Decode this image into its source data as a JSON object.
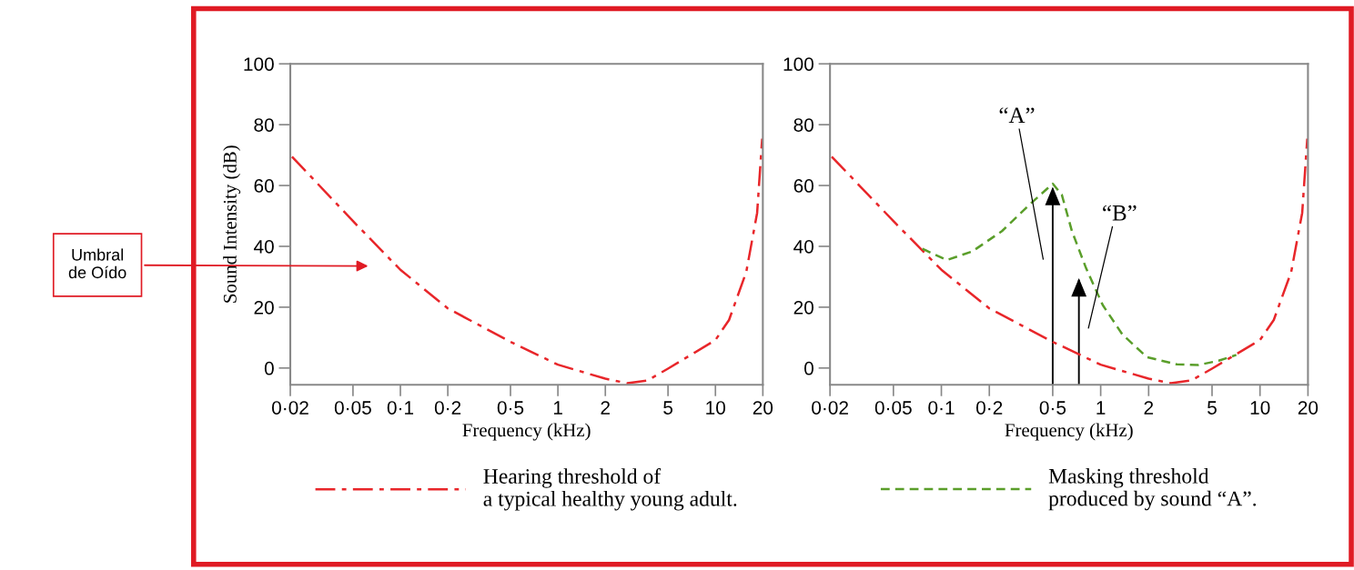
{
  "chart_data": [
    {
      "type": "line",
      "ylabel": "Sound Intensity (dB)",
      "xlabel": "Frequency (kHz)",
      "log": "x",
      "xlim": [
        0.02,
        20
      ],
      "xticks": [
        {
          "value": 0.02,
          "label": "0·02"
        },
        {
          "value": 0.05,
          "label": "0·05"
        },
        {
          "value": 0.1,
          "label": "0·1"
        },
        {
          "value": 0.2,
          "label": "0·2"
        },
        {
          "value": 0.5,
          "label": "0·5"
        },
        1,
        2,
        5,
        10,
        20
      ],
      "ylim": [
        -5.5,
        100
      ],
      "yticks": [
        0,
        20,
        40,
        60,
        80,
        100
      ],
      "legend": "bottom",
      "series": [
        {
          "name": "Hearing threshold of\na typical healthy young adult.",
          "color": "#e8262a",
          "line_style": "dashdot",
          "x": [
            0.0205,
            0.05,
            0.1,
            0.2,
            0.5,
            1,
            2,
            2.76,
            3.7,
            5,
            10,
            12.2,
            15.7,
            18.4,
            19.8
          ],
          "values": [
            69.5,
            48.3,
            32.3,
            19.6,
            8.6,
            1.1,
            -3.5,
            -5.0,
            -4.1,
            -0.2,
            9.2,
            15.8,
            31.6,
            51,
            75.4
          ]
        }
      ],
      "annotations": [
        "Umbral\nde Oído"
      ]
    },
    {
      "type": "line",
      "xlabel": "Frequency (kHz)",
      "log": "x",
      "xlim": [
        0.02,
        20
      ],
      "xticks": [
        {
          "value": 0.02,
          "label": "0·02"
        },
        {
          "value": 0.05,
          "label": "0·05"
        },
        {
          "value": 0.1,
          "label": "0·1"
        },
        {
          "value": 0.2,
          "label": "0·2"
        },
        {
          "value": 0.5,
          "label": "0·5"
        },
        1,
        2,
        5,
        10,
        20
      ],
      "ylim": [
        -5.5,
        100
      ],
      "yticks": [
        0,
        20,
        40,
        60,
        80,
        100
      ],
      "legend": "bottom",
      "series": [
        {
          "color": "#e8262a",
          "line_style": "dashdot",
          "x": [
            0.0205,
            0.05,
            0.1,
            0.2,
            0.5,
            1,
            2,
            2.76,
            3.7,
            5,
            10,
            12.2,
            15.7,
            18.4,
            19.8
          ],
          "values": [
            69.5,
            48.3,
            32.3,
            19.6,
            8.6,
            1.1,
            -3.5,
            -5.0,
            -4.1,
            -0.2,
            9.2,
            15.8,
            31.6,
            51,
            75.4
          ]
        },
        {
          "name": "Masking threshold\nproduced by sound “A”.",
          "color": "#5a9e2a",
          "line_style": "dashed",
          "x": [
            0.076,
            0.108,
            0.156,
            0.24,
            0.354,
            0.5,
            0.57,
            0.66,
            0.81,
            1.03,
            1.37,
            1.95,
            3.01,
            4.1,
            5.5,
            7.1
          ],
          "values": [
            39.2,
            35.5,
            38.3,
            45,
            53.5,
            60.6,
            57,
            45,
            32.8,
            20.7,
            11,
            3.6,
            1.2,
            1.0,
            2.4,
            4.3
          ]
        },
        {
          "type": "bar",
          "color": "#000000",
          "x": [
            0.5,
            0.73
          ],
          "base": [
            -5.5,
            -5.5
          ],
          "values": [
            64.5,
            34.5
          ]
        }
      ],
      "annotations": [
        "“A”",
        "“B”"
      ]
    }
  ]
}
